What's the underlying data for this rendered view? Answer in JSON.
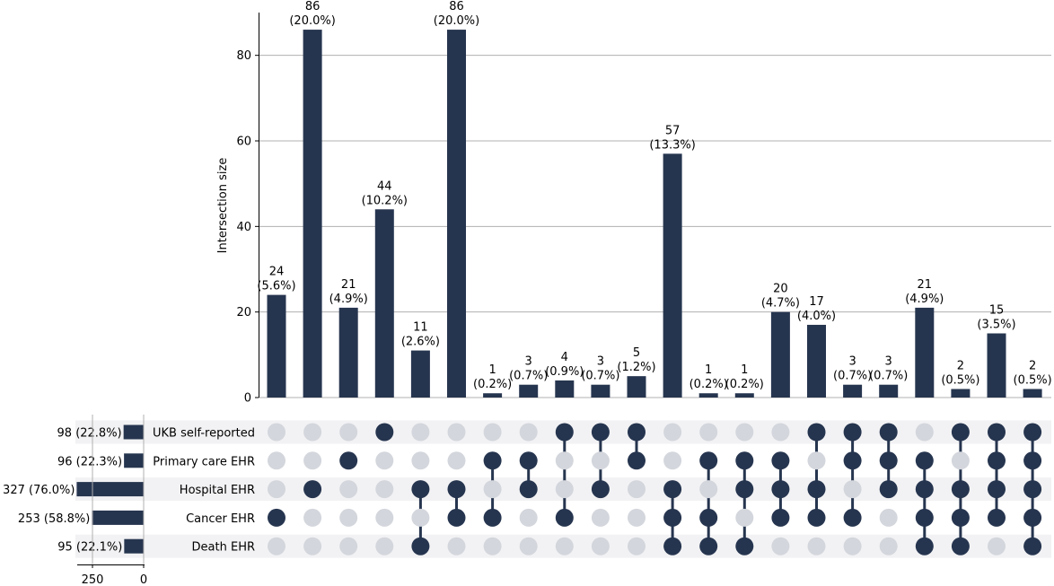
{
  "chart_data": {
    "type": "upset",
    "ylabel": "Intersection size",
    "ylim": [
      0,
      90
    ],
    "yticks": [
      "0",
      "20",
      "40",
      "60",
      "80"
    ],
    "set_size_ticks": [
      "250",
      "0"
    ],
    "grid": true,
    "bar_color": "#26354f",
    "inactive_dot_color": "#d3d6dc",
    "stripe_color": "#f2f2f4",
    "sets": [
      {
        "name": "UKB self-reported",
        "size": 98,
        "label": "98 (22.8%)"
      },
      {
        "name": "Primary care EHR",
        "size": 96,
        "label": "96 (22.3%)"
      },
      {
        "name": "Hospital EHR",
        "size": 327,
        "label": "327 (76.0%)"
      },
      {
        "name": "Cancer EHR",
        "size": 253,
        "label": "253 (58.8%)"
      },
      {
        "name": "Death EHR",
        "size": 95,
        "label": "95 (22.1%)"
      }
    ],
    "intersections": [
      {
        "value": 24,
        "count": "24",
        "pct": "(5.6%)",
        "members": [
          3
        ]
      },
      {
        "value": 86,
        "count": "86",
        "pct": "(20.0%)",
        "members": [
          2
        ]
      },
      {
        "value": 21,
        "count": "21",
        "pct": "(4.9%)",
        "members": [
          1
        ]
      },
      {
        "value": 44,
        "count": "44",
        "pct": "(10.2%)",
        "members": [
          0
        ]
      },
      {
        "value": 11,
        "count": "11",
        "pct": "(2.6%)",
        "members": [
          2,
          4
        ]
      },
      {
        "value": 86,
        "count": "86",
        "pct": "(20.0%)",
        "members": [
          2,
          3
        ]
      },
      {
        "value": 1,
        "count": "1",
        "pct": "(0.2%)",
        "members": [
          1,
          3
        ]
      },
      {
        "value": 3,
        "count": "3",
        "pct": "(0.7%)",
        "members": [
          1,
          2
        ]
      },
      {
        "value": 4,
        "count": "4",
        "pct": "(0.9%)",
        "members": [
          0,
          3
        ]
      },
      {
        "value": 3,
        "count": "3",
        "pct": "(0.7%)",
        "members": [
          0,
          2
        ]
      },
      {
        "value": 5,
        "count": "5",
        "pct": "(1.2%)",
        "members": [
          0,
          1
        ]
      },
      {
        "value": 57,
        "count": "57",
        "pct": "(13.3%)",
        "members": [
          2,
          3,
          4
        ]
      },
      {
        "value": 1,
        "count": "1",
        "pct": "(0.2%)",
        "members": [
          1,
          3,
          4
        ]
      },
      {
        "value": 1,
        "count": "1",
        "pct": "(0.2%)",
        "members": [
          1,
          2,
          4
        ]
      },
      {
        "value": 20,
        "count": "20",
        "pct": "(4.7%)",
        "members": [
          1,
          2,
          3
        ]
      },
      {
        "value": 17,
        "count": "17",
        "pct": "(4.0%)",
        "members": [
          0,
          2,
          3
        ]
      },
      {
        "value": 3,
        "count": "3",
        "pct": "(0.7%)",
        "members": [
          0,
          1,
          3
        ]
      },
      {
        "value": 3,
        "count": "3",
        "pct": "(0.7%)",
        "members": [
          0,
          1,
          2
        ]
      },
      {
        "value": 21,
        "count": "21",
        "pct": "(4.9%)",
        "members": [
          1,
          2,
          3,
          4
        ]
      },
      {
        "value": 2,
        "count": "2",
        "pct": "(0.5%)",
        "members": [
          0,
          2,
          3,
          4
        ]
      },
      {
        "value": 15,
        "count": "15",
        "pct": "(3.5%)",
        "members": [
          0,
          1,
          2,
          3
        ]
      },
      {
        "value": 2,
        "count": "2",
        "pct": "(0.5%)",
        "members": [
          0,
          1,
          2,
          3,
          4
        ]
      }
    ]
  }
}
